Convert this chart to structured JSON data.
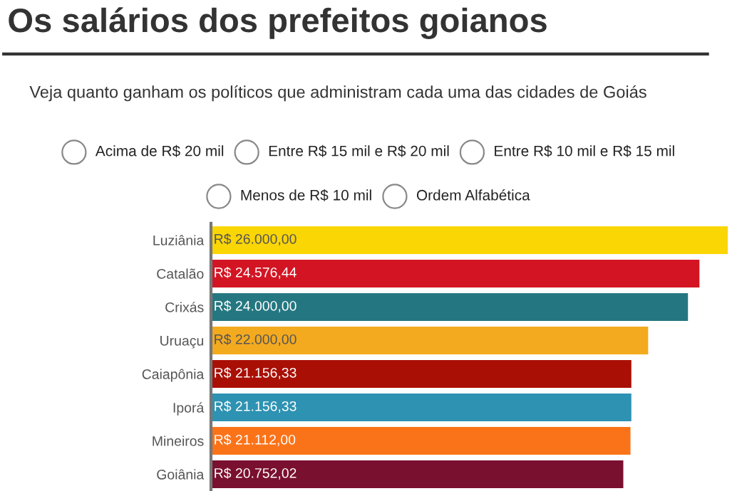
{
  "chart_data": {
    "type": "bar",
    "orientation": "horizontal",
    "title": "Os salários dos prefeitos goianos",
    "subtitle": "Veja quanto ganham os políticos que administram cada uma das cidades de Goiás",
    "annotations": [
      "Acima de R$ 20 mil",
      "Entre R$ 15 mil e R$ 20 mil",
      "Entre R$ 10 mil e R$ 15 mil",
      "Menos de R$ 10 mil",
      "Ordem Alfabética"
    ],
    "categories": [
      "Luziânia",
      "Catalão",
      "Crixás",
      "Uruaçu",
      "Caiapônia",
      "Iporá",
      "Mineiros",
      "Goiânia"
    ],
    "values": [
      26000.0,
      24576.44,
      24000.0,
      22000.0,
      21156.33,
      21156.33,
      21112.0,
      20752.02
    ],
    "value_labels": [
      "R$ 26.000,00",
      "R$ 24.576,44",
      "R$ 24.000,00",
      "R$ 22.000,00",
      "R$ 21.156,33",
      "R$ 21.156,33",
      "R$ 21.112,00",
      "R$ 20.752,02"
    ],
    "colors": [
      "#fbd605",
      "#d31523",
      "#247780",
      "#f4aa1f",
      "#a90f05",
      "#2e92b2",
      "#fb7318",
      "#7a1030"
    ],
    "tick_labels": "y",
    "legend": false,
    "grid": false
  }
}
